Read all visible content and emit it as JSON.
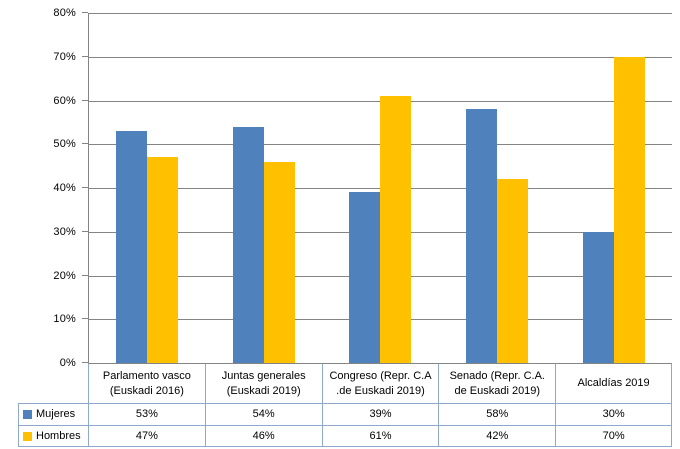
{
  "chart_data": {
    "type": "bar",
    "categories": [
      "Parlamento vasco\n(Euskadi 2016)",
      "Juntas generales\n(Euskadi 2019)",
      "Congreso (Repr. C.A\n.de Euskadi 2019)",
      "Senado (Repr. C.A.\nde Euskadi 2019)",
      "Alcaldías 2019"
    ],
    "series": [
      {
        "name": "Mujeres",
        "color": "#4F81BD",
        "values": [
          53,
          54,
          39,
          58,
          30
        ]
      },
      {
        "name": "Hombres",
        "color": "#FFC000",
        "values": [
          47,
          46,
          61,
          42,
          70
        ]
      }
    ],
    "value_suffix": "%",
    "ylim": [
      0,
      80
    ],
    "ytick_step": 10,
    "ytick_labels": [
      "0%",
      "10%",
      "20%",
      "30%",
      "40%",
      "50%",
      "60%",
      "70%",
      "80%"
    ],
    "grid": true,
    "legend_position": "table-left",
    "title": "",
    "xlabel": "",
    "ylabel": ""
  },
  "colors": {
    "bar_blue": "#4F81BD",
    "bar_yellow": "#FFC000",
    "gridline": "#848484",
    "table_border": "#8EA9CC",
    "text": "#000000",
    "background": "#FFFFFF"
  }
}
